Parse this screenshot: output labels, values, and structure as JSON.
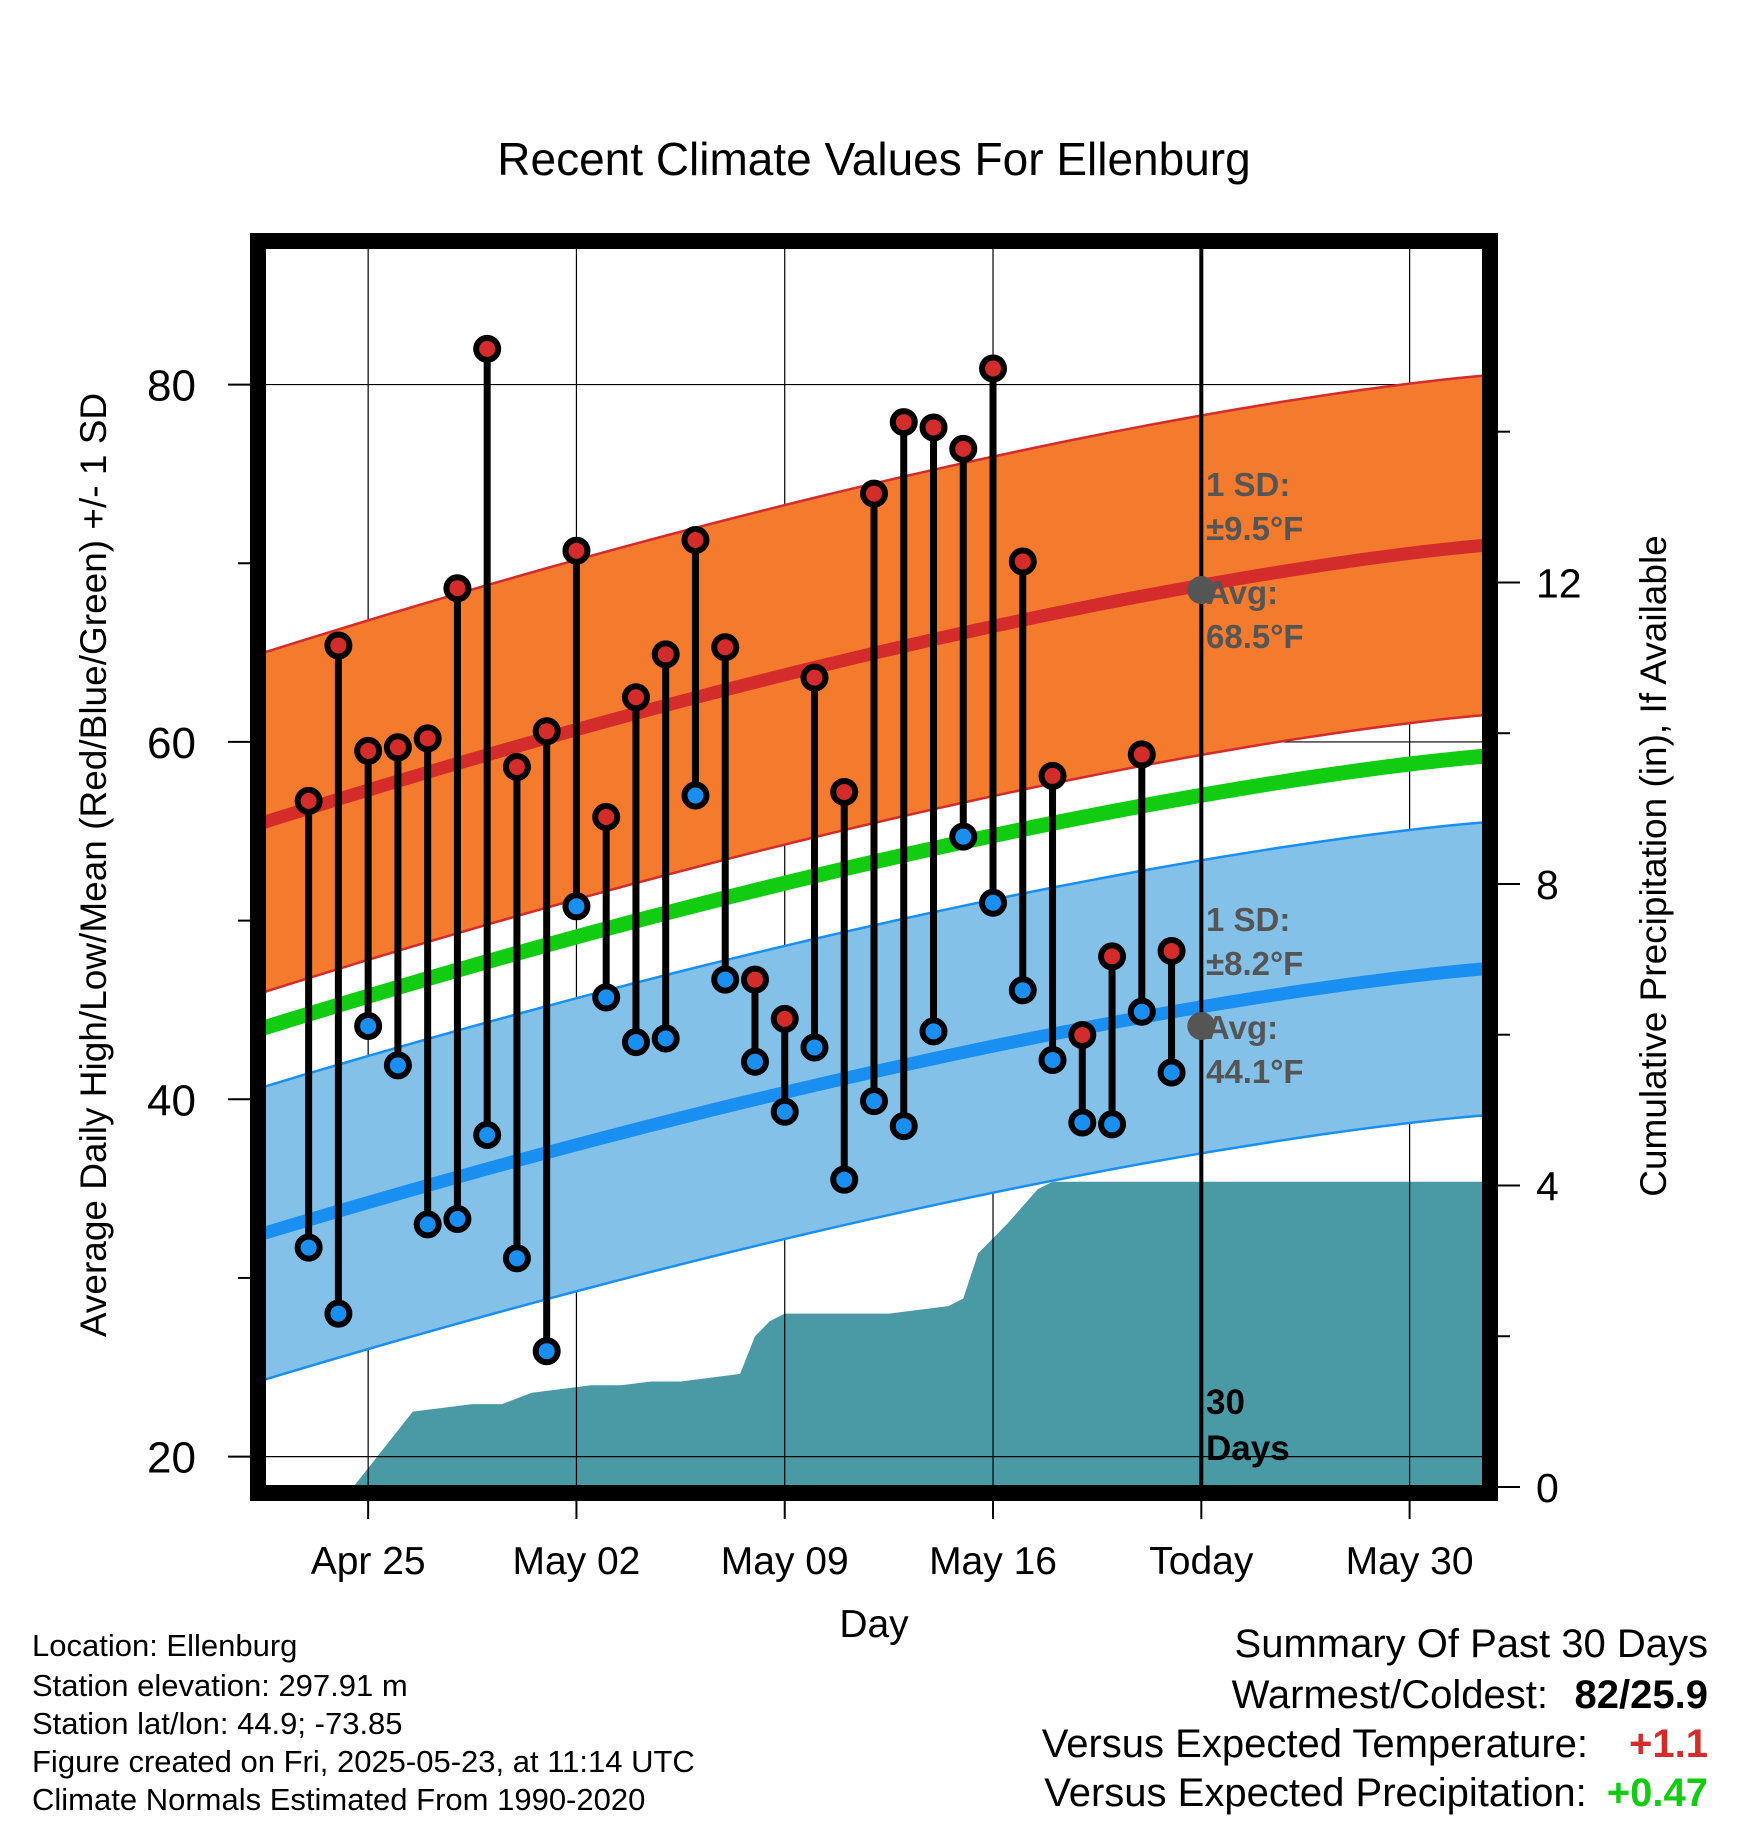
{
  "chart_data": {
    "type": "line",
    "title": "Recent Climate Values For Ellenburg",
    "xlabel": "Day",
    "ylabel": "Average Daily High/Low/Mean (Red/Blue/Green) +/- 1 SD",
    "ylabel_right": "Cumulative Precipitation (in), If Available",
    "x_ticks": [
      "Apr 25",
      "May 02",
      "May 09",
      "May 16",
      "Today",
      "May 30"
    ],
    "y_ticks": [
      "20",
      "40",
      "60",
      "80"
    ],
    "y_right_ticks": [
      "0",
      "4",
      "8",
      "12"
    ],
    "ylim": [
      18.3,
      87.7
    ],
    "y_right_lim": [
      0,
      16.45
    ],
    "x_range_days": [
      -31.5,
      9.5
    ],
    "today_label": [
      "30",
      "Days"
    ],
    "high_band": {
      "sd_label": [
        "1 SD:",
        "±9.5°F"
      ],
      "avg_label": [
        "Avg:",
        "68.5°F"
      ],
      "today_avg": 68.5,
      "sd": 9.5,
      "color": "#f47a2e",
      "line_color": "#d42b2b"
    },
    "low_band": {
      "sd_label": [
        "1 SD:",
        "±8.2°F"
      ],
      "avg_label": [
        "Avg:",
        "44.1°F"
      ],
      "today_avg": 44.1,
      "sd": 8.2,
      "color": "#84c1e8",
      "line_color": "#1a8ff2"
    },
    "normal_high": {
      "start": 55.5,
      "end": 71.0
    },
    "normal_low": {
      "start": 32.5,
      "end": 47.3
    },
    "normal_mean": {
      "start": 44.0,
      "end": 59.2,
      "color": "#11cc11"
    },
    "daily": {
      "day_offset": [
        -30,
        -29,
        -28,
        -27,
        -26,
        -25,
        -24,
        -23,
        -22,
        -21,
        -20,
        -19,
        -18,
        -17,
        -16,
        -15,
        -14,
        -13,
        -12,
        -11,
        -10,
        -9,
        -8,
        -7,
        -6,
        -5,
        -4,
        -3,
        -2,
        -1
      ],
      "high": [
        56.7,
        65.4,
        59.5,
        59.7,
        60.2,
        68.6,
        82.0,
        58.6,
        60.6,
        70.7,
        55.8,
        62.5,
        64.9,
        71.3,
        65.3,
        46.7,
        44.5,
        63.6,
        57.2,
        73.9,
        77.9,
        77.6,
        76.4,
        80.9,
        70.1,
        58.1,
        43.6,
        48.0,
        59.3,
        48.3
      ],
      "low": [
        31.7,
        28.0,
        44.1,
        41.9,
        33.0,
        33.3,
        38.0,
        31.1,
        25.9,
        50.8,
        45.7,
        43.2,
        43.4,
        57.0,
        46.7,
        42.1,
        39.3,
        42.9,
        35.5,
        39.9,
        38.5,
        43.8,
        54.7,
        51.0,
        46.1,
        42.2,
        38.7,
        38.6,
        44.9,
        41.5
      ]
    },
    "precip": {
      "color": "#4a9aa5",
      "day_offset": [
        -28.5,
        -27.5,
        -26.5,
        -25.5,
        -24.5,
        -23.5,
        -22.5,
        -21.5,
        -20.5,
        -19.5,
        -18.5,
        -17.5,
        -16.5,
        -15.5,
        -15.0,
        -14.5,
        -14.0,
        -13.5,
        -12.5,
        -11.5,
        -10.5,
        -9.5,
        -8.5,
        -8.0,
        -7.5,
        -6.5,
        -5.5,
        -5.0,
        -4.5,
        0.0,
        9.5
      ],
      "cumulative": [
        0.0,
        0.5,
        1.0,
        1.05,
        1.1,
        1.1,
        1.25,
        1.3,
        1.35,
        1.35,
        1.4,
        1.4,
        1.45,
        1.5,
        2.0,
        2.2,
        2.3,
        2.3,
        2.3,
        2.3,
        2.3,
        2.35,
        2.4,
        2.5,
        3.1,
        3.5,
        3.95,
        4.05,
        4.05,
        4.05,
        4.05
      ]
    }
  },
  "info": {
    "location": "Location: Ellenburg",
    "elevation": "Station elevation: 297.91 m",
    "latlon": "Station lat/lon: 44.9; -73.85",
    "created": "Figure created on Fri, 2025-05-23, at 11:14 UTC",
    "normals": "Climate Normals Estimated From 1990-2020"
  },
  "summary": {
    "title": "Summary Of Past 30 Days",
    "warm_cold_label": "Warmest/Coldest:",
    "warm_cold_value": "82/25.9",
    "temp_label": "Versus Expected Temperature:",
    "temp_value": "+1.1",
    "temp_color": "#d42b2b",
    "precip_label": "Versus Expected Precipitation:",
    "precip_value": "+0.47",
    "precip_color": "#11cc11"
  }
}
